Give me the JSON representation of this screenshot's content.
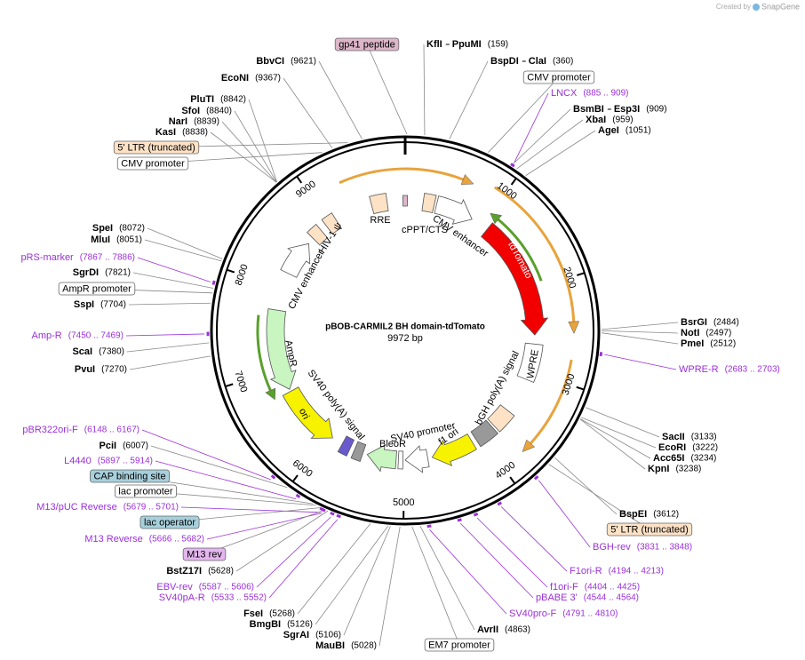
{
  "credit": {
    "prefix": "Created by",
    "brand": "SnapGene"
  },
  "plasmid": {
    "name": "pBOB-CARMIL2 BH domain-tdTomato",
    "size": "9972 bp"
  },
  "ruler": [
    1000,
    2000,
    3000,
    4000,
    5000,
    6000,
    7000,
    8000,
    9000
  ],
  "enzymes": [
    {
      "names": [
        "KflI",
        "PpuMI"
      ],
      "location": "(159)"
    },
    {
      "names": [
        "BspDI",
        "ClaI"
      ],
      "location": "(360)"
    },
    {
      "names": [
        "BsmBI",
        "Esp3I"
      ],
      "location": "(909)"
    },
    {
      "names": [
        "XbaI"
      ],
      "location": "(959)"
    },
    {
      "names": [
        "AgeI"
      ],
      "location": "(1051)"
    },
    {
      "names": [
        "BsrGI"
      ],
      "location": "(2484)"
    },
    {
      "names": [
        "NotI"
      ],
      "location": "(2497)"
    },
    {
      "names": [
        "PmeI"
      ],
      "location": "(2512)"
    },
    {
      "names": [
        "SacII"
      ],
      "location": "(3133)"
    },
    {
      "names": [
        "EcoRI"
      ],
      "location": "(3222)"
    },
    {
      "names": [
        "Acc65I"
      ],
      "location": "(3234)"
    },
    {
      "names": [
        "KpnI"
      ],
      "location": "(3238)"
    },
    {
      "names": [
        "BspEI"
      ],
      "location": "(3612)"
    },
    {
      "names": [
        "AvrII"
      ],
      "location": "(4863)"
    },
    {
      "names": [
        "MauBI"
      ],
      "location": "(5028)"
    },
    {
      "names": [
        "SgrAI"
      ],
      "location": "(5106)"
    },
    {
      "names": [
        "BmgBI"
      ],
      "location": "(5126)"
    },
    {
      "names": [
        "FseI"
      ],
      "location": "(5268)"
    },
    {
      "names": [
        "BstZ17I"
      ],
      "location": "(5628)"
    },
    {
      "names": [
        "PciI"
      ],
      "location": "(6007)"
    },
    {
      "names": [
        "PvuI"
      ],
      "location": "(7270)"
    },
    {
      "names": [
        "ScaI"
      ],
      "location": "(7380)"
    },
    {
      "names": [
        "SspI"
      ],
      "location": "(7704)"
    },
    {
      "names": [
        "SgrDI"
      ],
      "location": "(7821)"
    },
    {
      "names": [
        "MluI"
      ],
      "location": "(8051)"
    },
    {
      "names": [
        "SpeI"
      ],
      "location": "(8072)"
    },
    {
      "names": [
        "KasI"
      ],
      "location": "(8838)"
    },
    {
      "names": [
        "NarI"
      ],
      "location": "(8839)"
    },
    {
      "names": [
        "SfoI"
      ],
      "location": "(8840)"
    },
    {
      "names": [
        "PluTI"
      ],
      "location": "(8842)"
    },
    {
      "names": [
        "EcoNI"
      ],
      "location": "(9367)"
    },
    {
      "names": [
        "BbvCI"
      ],
      "location": "(9621)"
    }
  ],
  "primers": [
    {
      "name": "LNCX",
      "location": "(885 .. 909)"
    },
    {
      "name": "WPRE-R",
      "location": "(2683 .. 2703)"
    },
    {
      "name": "BGH-rev",
      "location": "(3831 .. 3848)"
    },
    {
      "name": "F1ori-R",
      "location": "(4194 .. 4213)"
    },
    {
      "name": "f1ori-F",
      "location": "(4404 .. 4425)"
    },
    {
      "name": "pBABE 3'",
      "location": "(4544 .. 4564)"
    },
    {
      "name": "SV40pro-F",
      "location": "(4791 .. 4810)"
    },
    {
      "name": "SV40pA-R",
      "location": "(5533 .. 5552)"
    },
    {
      "name": "EBV-rev",
      "location": "(5587 .. 5606)"
    },
    {
      "name": "M13 Reverse",
      "location": "(5666 .. 5682)"
    },
    {
      "name": "M13/pUC Reverse",
      "location": "(5679 .. 5701)"
    },
    {
      "name": "L4440",
      "location": "(5897 .. 5914)"
    },
    {
      "name": "pBR322ori-F",
      "location": "(6148 .. 6167)"
    },
    {
      "name": "Amp-R",
      "location": "(7450 .. 7469)"
    },
    {
      "name": "pRS-marker",
      "location": "(7867 .. 7886)"
    }
  ],
  "feature_labels": [
    {
      "name": "gp41 peptide",
      "color": "#ddb6c9"
    },
    {
      "name": "CMV promoter",
      "color": "#ffffff"
    },
    {
      "name": "5' LTR (truncated)",
      "color": "#fde2c6"
    },
    {
      "name": "CMV promoter",
      "color": "#ffffff"
    },
    {
      "name": "AmpR promoter",
      "color": "#ffffff"
    },
    {
      "name": "CAP binding site",
      "color": "#a7d0dc"
    },
    {
      "name": "lac promoter",
      "color": "#ffffff"
    },
    {
      "name": "lac operator",
      "color": "#a7d0dc"
    },
    {
      "name": "M13 rev",
      "color": "#e4b6ef"
    },
    {
      "name": "EM7 promoter",
      "color": "#ffffff"
    },
    {
      "name": "5' LTR (truncated)",
      "color": "#fde2c6"
    }
  ],
  "map_features": [
    "RRE",
    "cPPT/CTS",
    "CMV enhancer",
    "tdTomato",
    "WPRE",
    "bGH poly(A) signal",
    "f1 ori",
    "SV40 promoter",
    "BleoR",
    "SV40 poly(A) signal",
    "ori",
    "AmpR",
    "CMV enhancer",
    "HIV-1 ψ"
  ]
}
